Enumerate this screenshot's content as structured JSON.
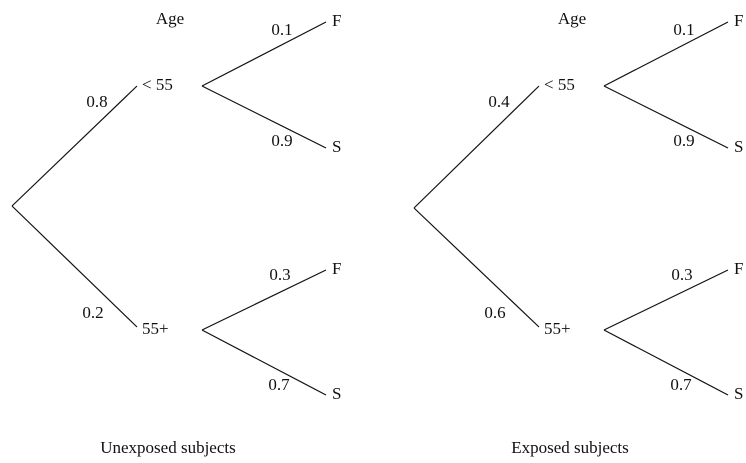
{
  "trees": [
    {
      "header": "Age",
      "caption": "Unexposed subjects",
      "branches": [
        {
          "label": "< 55",
          "probability": "0.8",
          "outcomes": [
            {
              "label": "F",
              "probability": "0.1"
            },
            {
              "label": "S",
              "probability": "0.9"
            }
          ]
        },
        {
          "label": "55+",
          "probability": "0.2",
          "outcomes": [
            {
              "label": "F",
              "probability": "0.3"
            },
            {
              "label": "S",
              "probability": "0.7"
            }
          ]
        }
      ]
    },
    {
      "header": "Age",
      "caption": "Exposed subjects",
      "branches": [
        {
          "label": "< 55",
          "probability": "0.4",
          "outcomes": [
            {
              "label": "F",
              "probability": "0.1"
            },
            {
              "label": "S",
              "probability": "0.9"
            }
          ]
        },
        {
          "label": "55+",
          "probability": "0.6",
          "outcomes": [
            {
              "label": "F",
              "probability": "0.3"
            },
            {
              "label": "S",
              "probability": "0.7"
            }
          ]
        }
      ]
    }
  ]
}
